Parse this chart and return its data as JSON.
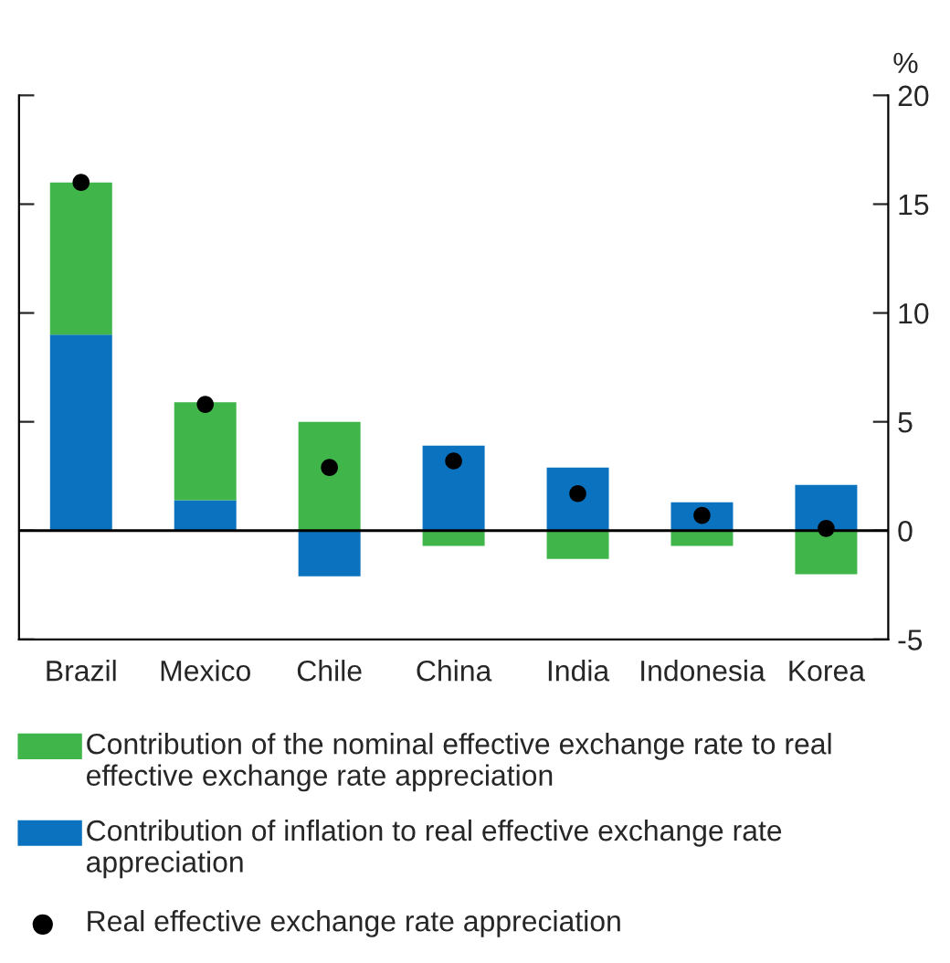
{
  "chart_data": {
    "type": "bar",
    "stacked": true,
    "ylabel": "%",
    "categories": [
      "Brazil",
      "Mexico",
      "Chile",
      "China",
      "India",
      "Indonesia",
      "Korea"
    ],
    "series": [
      {
        "name": "Contribution of inflation to real effective exchange rate appreciation",
        "color": "#0a72be",
        "values": [
          9,
          1.4,
          -2.1,
          3.9,
          2.9,
          1.3,
          2.1
        ]
      },
      {
        "name": "Contribution of the nominal effective exchange rate to real effective exchange rate appreciation",
        "color": "#3fb54a",
        "values": [
          7,
          4.5,
          5,
          -0.7,
          -1.3,
          -0.7,
          -2.0
        ]
      },
      {
        "name": "Real effective exchange rate appreciation",
        "type": "scatter",
        "color": "#000000",
        "x": [
          "Brazil",
          "Mexico",
          "Chile",
          "China",
          "India",
          "Indonesia",
          "Korea"
        ],
        "values": [
          16,
          5.8,
          2.9,
          3.2,
          1.7,
          0.7,
          0.1
        ]
      }
    ],
    "ylim": [
      -5,
      20
    ],
    "yticks": [
      -5,
      0,
      5,
      10,
      15,
      20
    ],
    "ref_lines": [
      {
        "axis": "y",
        "value": 0,
        "color": "#000000"
      }
    ],
    "legend": "bottom",
    "grid": false
  }
}
